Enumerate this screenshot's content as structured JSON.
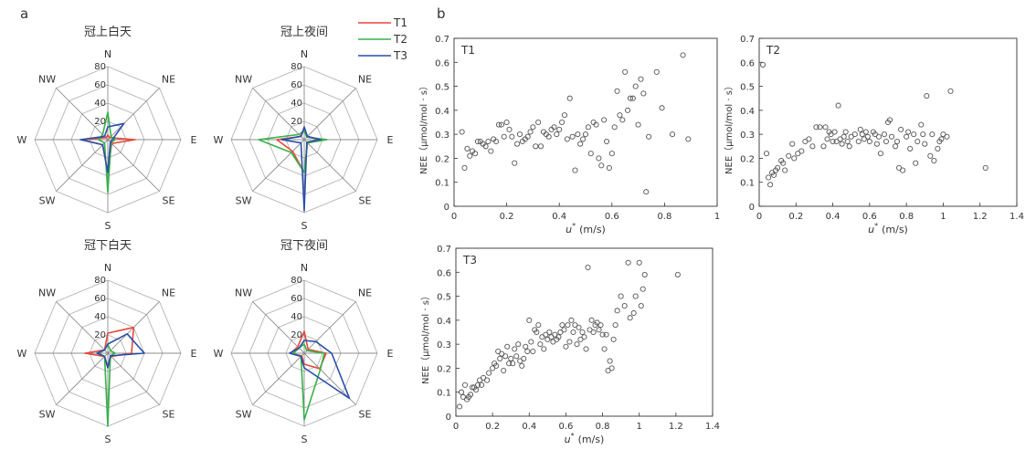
{
  "panel_labels": {
    "a": "a",
    "b": "b"
  },
  "radar_common": {
    "directions": [
      "N",
      "NE",
      "E",
      "SE",
      "S",
      "SW",
      "W",
      "NW"
    ],
    "ring_labels": [
      "20",
      "40",
      "60",
      "80"
    ],
    "rmax": 80,
    "legend": [
      {
        "name": "T1",
        "color": "#e8473a"
      },
      {
        "name": "T2",
        "color": "#38b24a"
      },
      {
        "name": "T3",
        "color": "#2a4fa8"
      }
    ]
  },
  "scatter_common": {
    "ylabel": "NEE（μmol/mol · s）",
    "xlabel_u": "u",
    "xlabel_sup": "*",
    "xlabel_unit": "(m/s)"
  },
  "chart_data": [
    {
      "type": "radar",
      "id": "r1",
      "title": "冠上白天",
      "series": [
        {
          "name": "T1",
          "values": [
            5,
            3,
            30,
            6,
            36,
            8,
            28,
            3
          ]
        },
        {
          "name": "T2",
          "values": [
            30,
            5,
            8,
            5,
            58,
            5,
            10,
            8
          ]
        },
        {
          "name": "T3",
          "values": [
            14,
            25,
            5,
            4,
            36,
            8,
            30,
            5
          ]
        }
      ]
    },
    {
      "type": "radar",
      "id": "r2",
      "title": "冠上夜间",
      "series": [
        {
          "name": "T1",
          "values": [
            12,
            4,
            22,
            5,
            36,
            18,
            30,
            5
          ]
        },
        {
          "name": "T2",
          "values": [
            10,
            4,
            25,
            5,
            36,
            20,
            50,
            8
          ]
        },
        {
          "name": "T3",
          "values": [
            14,
            5,
            18,
            4,
            78,
            5,
            25,
            5
          ]
        }
      ]
    },
    {
      "type": "radar",
      "id": "r3",
      "title": "冠下白天",
      "series": [
        {
          "name": "T1",
          "values": [
            22,
            40,
            26,
            5,
            16,
            5,
            25,
            5
          ]
        },
        {
          "name": "T2",
          "values": [
            10,
            4,
            8,
            4,
            80,
            5,
            10,
            5
          ]
        },
        {
          "name": "T3",
          "values": [
            10,
            30,
            40,
            4,
            16,
            5,
            12,
            5
          ]
        }
      ]
    },
    {
      "type": "radar",
      "id": "r4",
      "title": "冠下夜间",
      "series": [
        {
          "name": "T1",
          "values": [
            24,
            6,
            24,
            24,
            12,
            4,
            15,
            10
          ]
        },
        {
          "name": "T2",
          "values": [
            10,
            4,
            22,
            25,
            73,
            5,
            12,
            8
          ]
        },
        {
          "name": "T3",
          "values": [
            14,
            18,
            30,
            70,
            16,
            5,
            16,
            8
          ]
        }
      ]
    },
    {
      "type": "scatter",
      "id": "s1",
      "label": "T1",
      "xlim": [
        0,
        1
      ],
      "ylim": [
        0,
        0.7
      ],
      "xticks": [
        "0",
        "0.2",
        "0.4",
        "0.6",
        "0.8",
        "1"
      ],
      "yticks": [
        "0",
        "0.1",
        "0.2",
        "0.3",
        "0.4",
        "0.5",
        "0.6",
        "0.7"
      ],
      "points": [
        [
          0.03,
          0.31
        ],
        [
          0.04,
          0.16
        ],
        [
          0.05,
          0.24
        ],
        [
          0.06,
          0.21
        ],
        [
          0.07,
          0.23
        ],
        [
          0.08,
          0.22
        ],
        [
          0.09,
          0.27
        ],
        [
          0.1,
          0.27
        ],
        [
          0.11,
          0.26
        ],
        [
          0.12,
          0.25
        ],
        [
          0.13,
          0.27
        ],
        [
          0.14,
          0.23
        ],
        [
          0.15,
          0.28
        ],
        [
          0.16,
          0.27
        ],
        [
          0.17,
          0.34
        ],
        [
          0.18,
          0.34
        ],
        [
          0.19,
          0.29
        ],
        [
          0.2,
          0.35
        ],
        [
          0.21,
          0.32
        ],
        [
          0.22,
          0.29
        ],
        [
          0.23,
          0.18
        ],
        [
          0.24,
          0.26
        ],
        [
          0.25,
          0.3
        ],
        [
          0.26,
          0.27
        ],
        [
          0.27,
          0.28
        ],
        [
          0.28,
          0.29
        ],
        [
          0.29,
          0.31
        ],
        [
          0.3,
          0.33
        ],
        [
          0.31,
          0.25
        ],
        [
          0.32,
          0.35
        ],
        [
          0.33,
          0.25
        ],
        [
          0.34,
          0.31
        ],
        [
          0.35,
          0.3
        ],
        [
          0.36,
          0.29
        ],
        [
          0.37,
          0.32
        ],
        [
          0.38,
          0.33
        ],
        [
          0.39,
          0.3
        ],
        [
          0.4,
          0.32
        ],
        [
          0.41,
          0.35
        ],
        [
          0.42,
          0.38
        ],
        [
          0.43,
          0.28
        ],
        [
          0.44,
          0.45
        ],
        [
          0.45,
          0.29
        ],
        [
          0.46,
          0.15
        ],
        [
          0.47,
          0.3
        ],
        [
          0.48,
          0.26
        ],
        [
          0.49,
          0.28
        ],
        [
          0.5,
          0.3
        ],
        [
          0.51,
          0.33
        ],
        [
          0.52,
          0.22
        ],
        [
          0.53,
          0.35
        ],
        [
          0.54,
          0.34
        ],
        [
          0.55,
          0.2
        ],
        [
          0.56,
          0.17
        ],
        [
          0.57,
          0.36
        ],
        [
          0.58,
          0.27
        ],
        [
          0.59,
          0.16
        ],
        [
          0.6,
          0.22
        ],
        [
          0.61,
          0.33
        ],
        [
          0.62,
          0.48
        ],
        [
          0.63,
          0.38
        ],
        [
          0.64,
          0.36
        ],
        [
          0.65,
          0.56
        ],
        [
          0.66,
          0.4
        ],
        [
          0.67,
          0.45
        ],
        [
          0.68,
          0.45
        ],
        [
          0.69,
          0.5
        ],
        [
          0.7,
          0.34
        ],
        [
          0.71,
          0.53
        ],
        [
          0.72,
          0.47
        ],
        [
          0.73,
          0.06
        ],
        [
          0.74,
          0.29
        ],
        [
          0.77,
          0.56
        ],
        [
          0.79,
          0.41
        ],
        [
          0.83,
          0.3
        ],
        [
          0.87,
          0.63
        ],
        [
          0.89,
          0.28
        ]
      ]
    },
    {
      "type": "scatter",
      "id": "s2",
      "label": "T2",
      "xlim": [
        0,
        1.4
      ],
      "ylim": [
        0,
        0.7
      ],
      "xticks": [
        "0",
        "0.2",
        "0.4",
        "0.6",
        "0.8",
        "1",
        "1.2",
        "1.4"
      ],
      "yticks": [
        "0",
        "0.1",
        "0.2",
        "0.3",
        "0.4",
        "0.5",
        "0.6",
        "0.7"
      ],
      "points": [
        [
          0.02,
          0.59
        ],
        [
          0.04,
          0.22
        ],
        [
          0.05,
          0.12
        ],
        [
          0.06,
          0.09
        ],
        [
          0.07,
          0.14
        ],
        [
          0.08,
          0.13
        ],
        [
          0.09,
          0.15
        ],
        [
          0.1,
          0.16
        ],
        [
          0.12,
          0.19
        ],
        [
          0.13,
          0.18
        ],
        [
          0.14,
          0.15
        ],
        [
          0.16,
          0.21
        ],
        [
          0.18,
          0.26
        ],
        [
          0.19,
          0.2
        ],
        [
          0.21,
          0.22
        ],
        [
          0.23,
          0.23
        ],
        [
          0.25,
          0.27
        ],
        [
          0.27,
          0.28
        ],
        [
          0.29,
          0.25
        ],
        [
          0.31,
          0.33
        ],
        [
          0.33,
          0.33
        ],
        [
          0.35,
          0.25
        ],
        [
          0.36,
          0.33
        ],
        [
          0.37,
          0.28
        ],
        [
          0.38,
          0.31
        ],
        [
          0.39,
          0.3
        ],
        [
          0.4,
          0.27
        ],
        [
          0.41,
          0.31
        ],
        [
          0.42,
          0.27
        ],
        [
          0.43,
          0.42
        ],
        [
          0.44,
          0.28
        ],
        [
          0.45,
          0.26
        ],
        [
          0.46,
          0.29
        ],
        [
          0.47,
          0.31
        ],
        [
          0.48,
          0.27
        ],
        [
          0.49,
          0.25
        ],
        [
          0.5,
          0.29
        ],
        [
          0.52,
          0.3
        ],
        [
          0.54,
          0.27
        ],
        [
          0.55,
          0.32
        ],
        [
          0.56,
          0.3
        ],
        [
          0.57,
          0.28
        ],
        [
          0.58,
          0.31
        ],
        [
          0.59,
          0.29
        ],
        [
          0.6,
          0.27
        ],
        [
          0.62,
          0.31
        ],
        [
          0.63,
          0.3
        ],
        [
          0.64,
          0.26
        ],
        [
          0.65,
          0.29
        ],
        [
          0.66,
          0.22
        ],
        [
          0.68,
          0.3
        ],
        [
          0.69,
          0.27
        ],
        [
          0.7,
          0.35
        ],
        [
          0.71,
          0.36
        ],
        [
          0.72,
          0.29
        ],
        [
          0.74,
          0.25
        ],
        [
          0.75,
          0.27
        ],
        [
          0.76,
          0.16
        ],
        [
          0.77,
          0.32
        ],
        [
          0.78,
          0.15
        ],
        [
          0.8,
          0.29
        ],
        [
          0.81,
          0.31
        ],
        [
          0.82,
          0.24
        ],
        [
          0.84,
          0.3
        ],
        [
          0.85,
          0.18
        ],
        [
          0.86,
          0.27
        ],
        [
          0.88,
          0.34
        ],
        [
          0.89,
          0.3
        ],
        [
          0.9,
          0.26
        ],
        [
          0.91,
          0.46
        ],
        [
          0.93,
          0.21
        ],
        [
          0.94,
          0.3
        ],
        [
          0.95,
          0.19
        ],
        [
          0.97,
          0.24
        ],
        [
          0.98,
          0.27
        ],
        [
          0.99,
          0.28
        ],
        [
          1.0,
          0.3
        ],
        [
          1.02,
          0.29
        ],
        [
          1.04,
          0.48
        ],
        [
          1.23,
          0.16
        ]
      ]
    },
    {
      "type": "scatter",
      "id": "s3",
      "label": "T3",
      "xlim": [
        0,
        1.4
      ],
      "ylim": [
        0,
        0.7
      ],
      "xticks": [
        "0",
        "0.2",
        "0.4",
        "0.6",
        "0.8",
        "1",
        "1.2",
        "1.4"
      ],
      "yticks": [
        "0",
        "0.1",
        "0.2",
        "0.3",
        "0.4",
        "0.5",
        "0.6",
        "0.7"
      ],
      "points": [
        [
          0.02,
          0.04
        ],
        [
          0.03,
          0.1
        ],
        [
          0.04,
          0.08
        ],
        [
          0.05,
          0.13
        ],
        [
          0.06,
          0.07
        ],
        [
          0.07,
          0.08
        ],
        [
          0.08,
          0.09
        ],
        [
          0.09,
          0.12
        ],
        [
          0.1,
          0.12
        ],
        [
          0.11,
          0.11
        ],
        [
          0.12,
          0.13
        ],
        [
          0.13,
          0.15
        ],
        [
          0.14,
          0.13
        ],
        [
          0.15,
          0.16
        ],
        [
          0.17,
          0.15
        ],
        [
          0.18,
          0.18
        ],
        [
          0.2,
          0.2
        ],
        [
          0.21,
          0.22
        ],
        [
          0.22,
          0.21
        ],
        [
          0.23,
          0.27
        ],
        [
          0.24,
          0.24
        ],
        [
          0.25,
          0.26
        ],
        [
          0.26,
          0.19
        ],
        [
          0.27,
          0.25
        ],
        [
          0.28,
          0.29
        ],
        [
          0.29,
          0.22
        ],
        [
          0.3,
          0.24
        ],
        [
          0.31,
          0.22
        ],
        [
          0.32,
          0.28
        ],
        [
          0.33,
          0.25
        ],
        [
          0.34,
          0.3
        ],
        [
          0.35,
          0.23
        ],
        [
          0.36,
          0.21
        ],
        [
          0.37,
          0.24
        ],
        [
          0.38,
          0.29
        ],
        [
          0.39,
          0.27
        ],
        [
          0.4,
          0.4
        ],
        [
          0.41,
          0.31
        ],
        [
          0.42,
          0.27
        ],
        [
          0.43,
          0.36
        ],
        [
          0.44,
          0.35
        ],
        [
          0.45,
          0.38
        ],
        [
          0.46,
          0.3
        ],
        [
          0.47,
          0.33
        ],
        [
          0.48,
          0.28
        ],
        [
          0.49,
          0.34
        ],
        [
          0.5,
          0.32
        ],
        [
          0.51,
          0.35
        ],
        [
          0.52,
          0.33
        ],
        [
          0.53,
          0.31
        ],
        [
          0.54,
          0.34
        ],
        [
          0.55,
          0.32
        ],
        [
          0.56,
          0.33
        ],
        [
          0.57,
          0.35
        ],
        [
          0.58,
          0.38
        ],
        [
          0.59,
          0.36
        ],
        [
          0.6,
          0.29
        ],
        [
          0.61,
          0.38
        ],
        [
          0.62,
          0.31
        ],
        [
          0.63,
          0.4
        ],
        [
          0.64,
          0.35
        ],
        [
          0.65,
          0.38
        ],
        [
          0.66,
          0.3
        ],
        [
          0.67,
          0.37
        ],
        [
          0.68,
          0.32
        ],
        [
          0.69,
          0.35
        ],
        [
          0.7,
          0.33
        ],
        [
          0.71,
          0.28
        ],
        [
          0.72,
          0.62
        ],
        [
          0.73,
          0.36
        ],
        [
          0.74,
          0.4
        ],
        [
          0.75,
          0.35
        ],
        [
          0.76,
          0.38
        ],
        [
          0.77,
          0.39
        ],
        [
          0.78,
          0.36
        ],
        [
          0.79,
          0.38
        ],
        [
          0.8,
          0.34
        ],
        [
          0.81,
          0.28
        ],
        [
          0.82,
          0.34
        ],
        [
          0.83,
          0.19
        ],
        [
          0.84,
          0.23
        ],
        [
          0.85,
          0.2
        ],
        [
          0.86,
          0.32
        ],
        [
          0.87,
          0.38
        ],
        [
          0.88,
          0.44
        ],
        [
          0.9,
          0.5
        ],
        [
          0.92,
          0.46
        ],
        [
          0.94,
          0.64
        ],
        [
          0.95,
          0.41
        ],
        [
          0.97,
          0.43
        ],
        [
          0.98,
          0.5
        ],
        [
          1.0,
          0.64
        ],
        [
          1.01,
          0.46
        ],
        [
          1.02,
          0.53
        ],
        [
          1.03,
          0.59
        ],
        [
          1.21,
          0.59
        ]
      ]
    }
  ]
}
